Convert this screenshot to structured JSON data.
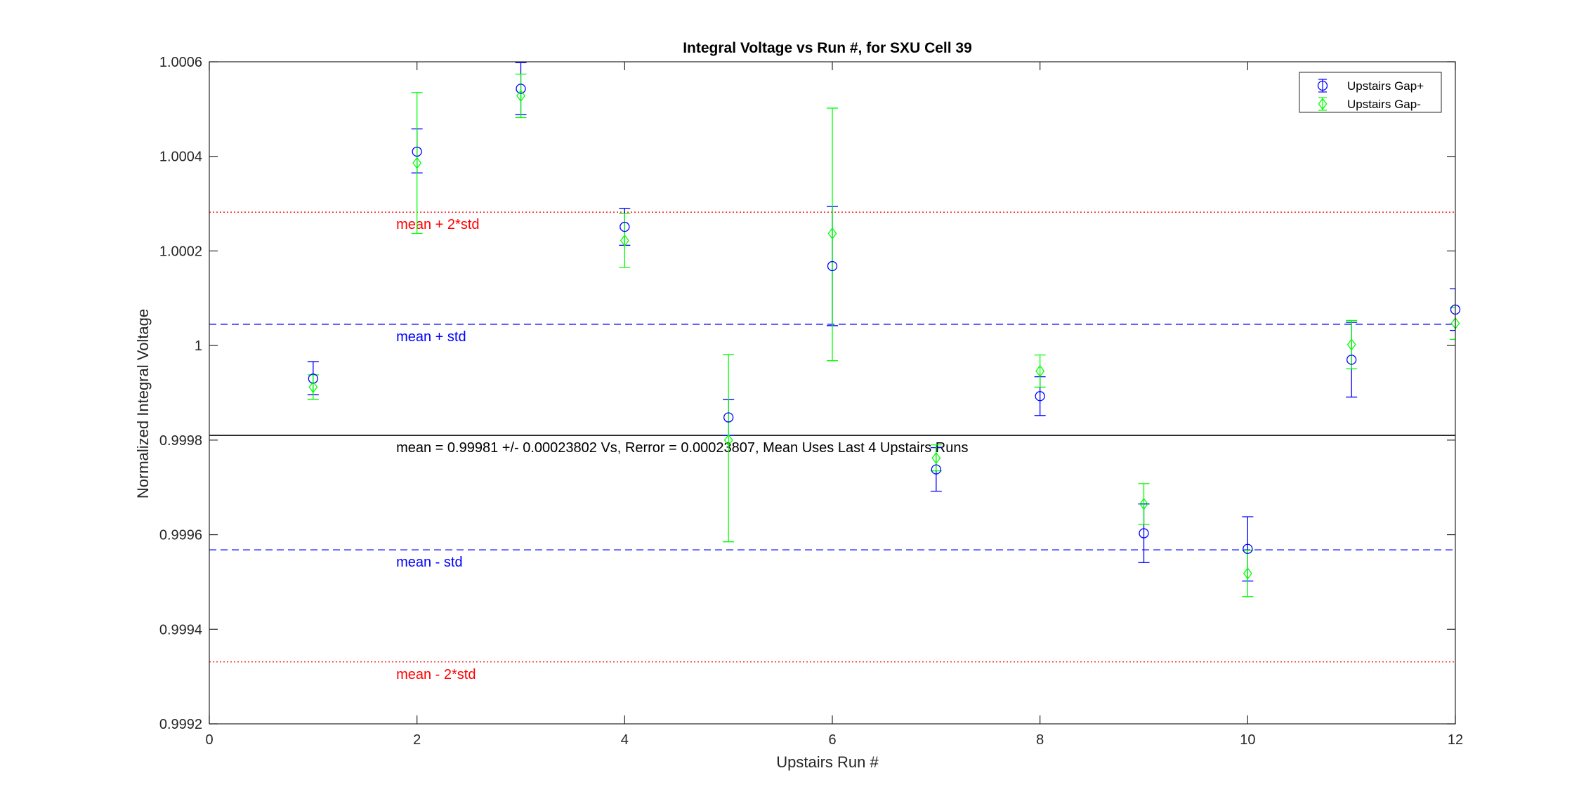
{
  "chart_data": {
    "type": "scatter",
    "title": "Integral Voltage vs Run #, for SXU Cell 39",
    "xlabel": "Upstairs Run #",
    "ylabel": "Normalized Integral Voltage",
    "xlim": [
      0,
      12
    ],
    "ylim": [
      0.9992,
      1.0006
    ],
    "xticks": [
      0,
      2,
      4,
      6,
      8,
      10,
      12
    ],
    "xtick_labels": [
      "0",
      "2",
      "4",
      "6",
      "8",
      "10",
      "12"
    ],
    "yticks": [
      0.9992,
      0.9994,
      0.9996,
      0.9998,
      1.0,
      1.0002,
      1.0004,
      1.0006
    ],
    "ytick_labels": [
      "0.9992",
      "0.9994",
      "0.9996",
      "0.9998",
      "1",
      "1.0002",
      "1.0004",
      "1.0006"
    ],
    "grid": false,
    "legend_position": "top-right",
    "series": [
      {
        "name": "Upstairs Gap+",
        "color": "#0000ff",
        "marker": "circle",
        "x": [
          1,
          2,
          3,
          4,
          5,
          6,
          7,
          8,
          9,
          10,
          11,
          12
        ],
        "y": [
          0.99993,
          1.00041,
          1.000543,
          1.000251,
          0.999848,
          1.000168,
          0.999738,
          0.999893,
          0.999603,
          0.99957,
          0.99997,
          1.000076
        ],
        "err_low": [
          0.999896,
          1.000365,
          1.000488,
          1.000212,
          0.99981,
          1.000042,
          0.999692,
          0.999852,
          0.999541,
          0.999502,
          0.999891,
          1.000032
        ],
        "err_high": [
          0.999966,
          1.000458,
          1.000598,
          1.00029,
          0.999886,
          1.000294,
          0.999784,
          0.999934,
          0.999665,
          0.999638,
          1.000049,
          1.00012
        ]
      },
      {
        "name": "Upstairs Gap-",
        "color": "#00ff00",
        "marker": "diamond",
        "x": [
          1,
          2,
          3,
          4,
          5,
          6,
          7,
          8,
          9,
          10,
          11,
          12
        ],
        "y": [
          0.999912,
          1.000386,
          1.000528,
          1.000222,
          0.9998,
          1.000237,
          0.999762,
          0.999946,
          0.999665,
          0.999518,
          1.000002,
          1.000047
        ],
        "err_low": [
          0.999886,
          1.000237,
          1.000482,
          1.000165,
          0.999585,
          0.999968,
          0.999735,
          0.999912,
          0.999622,
          0.999469,
          0.999951,
          1.000013
        ],
        "err_high": [
          0.999938,
          1.000535,
          1.000574,
          1.000279,
          0.999981,
          1.000502,
          0.99979,
          0.99998,
          0.999708,
          0.999567,
          1.000053,
          1.000081
        ]
      }
    ],
    "reference_lines": [
      {
        "label": "mean + 2*std",
        "y": 1.000282,
        "color": "#ff0000",
        "style": "dotted"
      },
      {
        "label": "mean + std",
        "y": 1.000045,
        "color": "#0000ff",
        "style": "dashed"
      },
      {
        "label": "mean = 0.99981 +/- 0.00023802 Vs, Rerror = 0.00023807, Mean Uses Last 4 Upstairs Runs",
        "y": 0.99981,
        "color": "#000000",
        "style": "solid"
      },
      {
        "label": "mean - std",
        "y": 0.999568,
        "color": "#0000ff",
        "style": "dashed"
      },
      {
        "label": "mean - 2*std",
        "y": 0.999331,
        "color": "#ff0000",
        "style": "dotted"
      }
    ],
    "annotation_x": 1.8
  }
}
